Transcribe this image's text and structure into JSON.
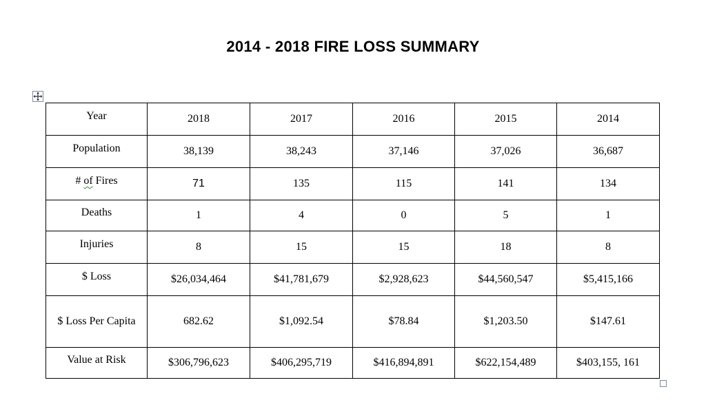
{
  "title": "2014 - 2018 FIRE LOSS SUMMARY",
  "table": {
    "header": {
      "label": "Year",
      "years": [
        "2018",
        "2017",
        "2016",
        "2015",
        "2014"
      ]
    },
    "rows": [
      {
        "label": "Population",
        "values": [
          "38,139",
          "38,243",
          "37,146",
          "37,026",
          "36,687"
        ]
      },
      {
        "label_prefix": "# ",
        "label_marked": "of",
        "label_suffix": " Fires",
        "values": [
          "71",
          "135",
          "115",
          "141",
          "134"
        ]
      },
      {
        "label": "Deaths",
        "values": [
          "1",
          "4",
          "0",
          "5",
          "1"
        ]
      },
      {
        "label": "Injuries",
        "values": [
          "8",
          "15",
          "15",
          "18",
          "8"
        ]
      },
      {
        "label": "$ Loss",
        "values": [
          "$26,034,464",
          "$41,781,679",
          "$2,928,623",
          "$44,560,547",
          "$5,415,166"
        ]
      },
      {
        "label": "$ Loss Per Capita",
        "values": [
          "682.62",
          "$1,092.54",
          "$78.84",
          "$1,203.50",
          "$147.61"
        ]
      },
      {
        "label": "Value at Risk",
        "values": [
          "$306,796,623",
          "$406,295,719",
          "$416,894,891",
          "$622,154,489",
          "$403,155, 161"
        ]
      }
    ]
  }
}
